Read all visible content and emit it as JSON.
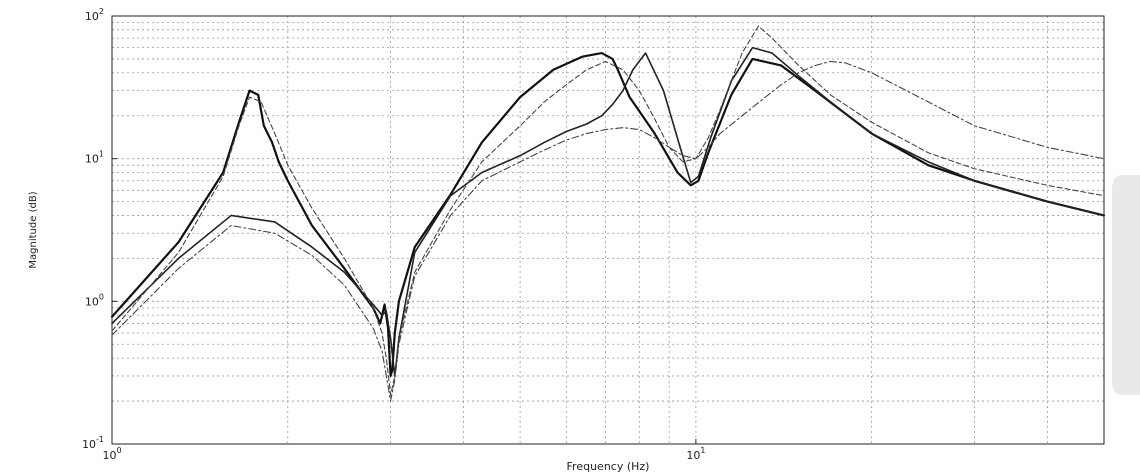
{
  "chart_data": {
    "type": "line",
    "title": "",
    "xlabel": "Frequency (Hz)",
    "ylabel": "Magnitude (dB)",
    "xscale": "log",
    "yscale": "log",
    "xlim": [
      1,
      50
    ],
    "ylim": [
      0.1,
      100
    ],
    "grid": true,
    "legend": "none",
    "x_ticks": [
      1,
      10
    ],
    "y_ticks": [
      0.1,
      1,
      10,
      100
    ],
    "series": [
      {
        "style": "solid-thick",
        "color": "#111111",
        "x": [
          1.0,
          1.3,
          1.55,
          1.65,
          1.72,
          1.78,
          1.82,
          1.88,
          1.93,
          2.0,
          2.2,
          2.5,
          2.8,
          2.88,
          2.93,
          2.97,
          3.0,
          3.02,
          3.05,
          3.1,
          3.3,
          3.8,
          4.3,
          5.0,
          5.7,
          6.4,
          6.9,
          7.2,
          7.35,
          7.7,
          8.5,
          9.3,
          9.8,
          10.1,
          10.5,
          11.5,
          12.5,
          14.0,
          16.0,
          20.0,
          25.0,
          30.0,
          40.0,
          50.0
        ],
        "y": [
          0.78,
          2.6,
          8.0,
          18.0,
          30.0,
          28.0,
          17.0,
          13.0,
          9.5,
          7.0,
          3.4,
          1.7,
          0.9,
          0.7,
          0.95,
          0.65,
          0.3,
          0.33,
          0.6,
          1.0,
          2.4,
          5.6,
          13.0,
          27.0,
          42.0,
          52.0,
          55.0,
          50.0,
          42.0,
          27.0,
          15.0,
          8.0,
          6.5,
          7.0,
          11.0,
          28.0,
          50.0,
          45.0,
          30.0,
          15.0,
          9.0,
          7.0,
          5.0,
          4.0
        ]
      },
      {
        "style": "solid",
        "color": "#222222",
        "x": [
          1.0,
          1.3,
          1.6,
          1.9,
          2.2,
          2.5,
          2.8,
          2.9,
          2.95,
          3.0,
          3.05,
          3.1,
          3.3,
          3.8,
          4.3,
          5.0,
          5.5,
          6.0,
          6.5,
          6.9,
          7.2,
          7.5,
          7.8,
          8.2,
          8.8,
          9.4,
          9.8,
          10.1,
          10.6,
          11.5,
          12.5,
          13.5,
          15.0,
          17.0,
          20.0,
          25.0,
          30.0,
          40.0,
          50.0
        ],
        "y": [
          0.7,
          2.0,
          4.0,
          3.6,
          2.4,
          1.6,
          0.95,
          0.8,
          0.85,
          0.55,
          0.3,
          0.55,
          2.2,
          5.5,
          8.0,
          10.5,
          13.0,
          15.5,
          17.5,
          20.0,
          24.0,
          30.0,
          42.0,
          55.0,
          30.0,
          12.0,
          6.8,
          7.5,
          14.0,
          35.0,
          60.0,
          55.0,
          38.0,
          25.0,
          15.0,
          9.5,
          7.0,
          5.0,
          4.0
        ]
      },
      {
        "style": "dashed",
        "color": "#444444",
        "x": [
          1.0,
          1.3,
          1.55,
          1.65,
          1.72,
          1.8,
          1.9,
          2.0,
          2.2,
          2.5,
          2.8,
          2.9,
          2.95,
          3.0,
          3.05,
          3.1,
          3.3,
          3.8,
          4.3,
          5.0,
          5.5,
          6.0,
          6.5,
          7.0,
          7.5,
          8.0,
          8.5,
          9.0,
          9.5,
          10.0,
          10.5,
          11.0,
          12.0,
          12.8,
          13.5,
          15.0,
          17.0,
          20.0,
          25.0,
          30.0,
          40.0,
          50.0
        ],
        "y": [
          0.62,
          2.2,
          7.5,
          17.0,
          27.0,
          25.0,
          15.0,
          9.0,
          4.5,
          2.0,
          0.9,
          0.6,
          0.4,
          0.22,
          0.3,
          0.55,
          1.6,
          4.4,
          9.5,
          17.0,
          25.0,
          33.0,
          42.0,
          48.0,
          42.0,
          30.0,
          19.0,
          12.0,
          9.5,
          10.0,
          14.0,
          22.0,
          55.0,
          85.0,
          70.0,
          45.0,
          28.0,
          18.0,
          11.0,
          8.5,
          6.5,
          5.5
        ]
      },
      {
        "style": "dash-dot",
        "color": "#444444",
        "x": [
          1.0,
          1.3,
          1.6,
          1.9,
          2.2,
          2.5,
          2.8,
          2.9,
          2.95,
          3.0,
          3.05,
          3.1,
          3.3,
          3.8,
          4.3,
          5.0,
          5.5,
          6.0,
          6.5,
          7.0,
          7.5,
          8.0,
          8.5,
          9.0,
          9.5,
          10.0,
          10.5,
          11.0,
          12.0,
          13.0,
          14.0,
          15.0,
          16.0,
          17.0,
          18.0,
          20.0,
          25.0,
          30.0,
          40.0,
          50.0
        ],
        "y": [
          0.58,
          1.7,
          3.4,
          3.0,
          2.1,
          1.3,
          0.65,
          0.45,
          0.3,
          0.2,
          0.28,
          0.5,
          1.5,
          4.0,
          7.0,
          9.5,
          11.5,
          13.5,
          15.0,
          16.0,
          16.5,
          16.0,
          14.0,
          12.0,
          10.5,
          10.0,
          12.0,
          15.0,
          20.0,
          26.0,
          33.0,
          40.0,
          45.0,
          48.0,
          47.0,
          40.0,
          25.0,
          17.0,
          12.0,
          10.0
        ]
      }
    ]
  }
}
